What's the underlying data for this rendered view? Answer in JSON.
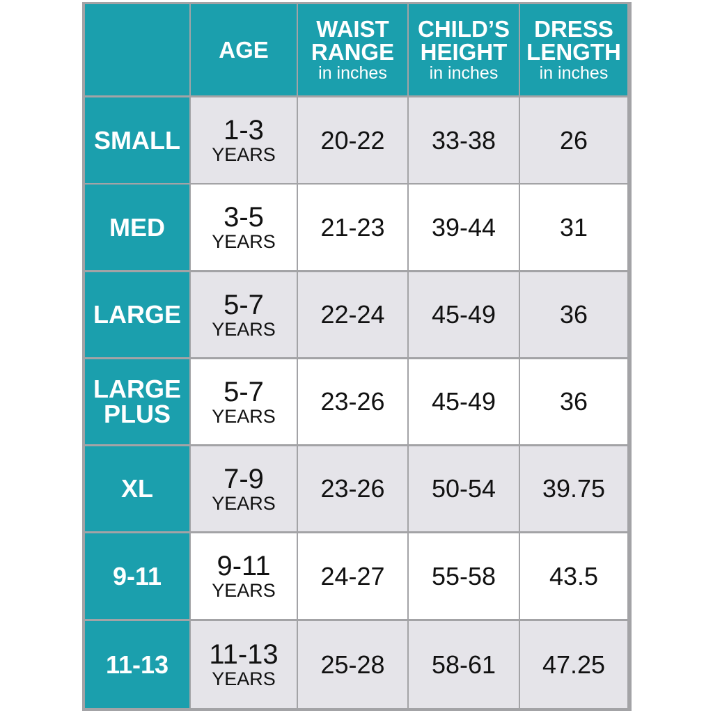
{
  "header": {
    "columns": [
      {
        "title": "AGE"
      },
      {
        "title": "WAIST RANGE",
        "unit": "in inches"
      },
      {
        "title": "CHILD’S HEIGHT",
        "unit": "in inches"
      },
      {
        "title": "DRESS LENGTH",
        "unit": "in inches"
      }
    ]
  },
  "table": {
    "rows": [
      {
        "size": "SMALL",
        "age": "1-3",
        "age_unit": "YEARS",
        "waist": "20-22",
        "height": "33-38",
        "length": 26
      },
      {
        "size": "MED",
        "age": "3-5",
        "age_unit": "YEARS",
        "waist": "21-23",
        "height": "39-44",
        "length": 31
      },
      {
        "size": "LARGE",
        "age": "5-7",
        "age_unit": "YEARS",
        "waist": "22-24",
        "height": "45-49",
        "length": 36
      },
      {
        "size": "LARGE PLUS",
        "age": "5-7",
        "age_unit": "YEARS",
        "waist": "23-26",
        "height": "45-49",
        "length": 36
      },
      {
        "size": "XL",
        "age": "7-9",
        "age_unit": "YEARS",
        "waist": "23-26",
        "height": "50-54",
        "length": 39.75
      },
      {
        "size": "9-11",
        "age": "9-11",
        "age_unit": "YEARS",
        "waist": "24-27",
        "height": "55-58",
        "length": 43.5
      },
      {
        "size": "11-13",
        "age": "11-13",
        "age_unit": "YEARS",
        "waist": "25-28",
        "height": "58-61",
        "length": 47.25
      }
    ]
  }
}
